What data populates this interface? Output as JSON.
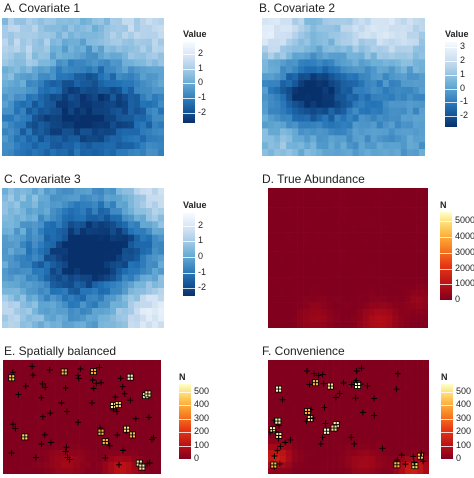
{
  "panels": [
    {
      "id": "cov1",
      "title": "A. Covariate 1",
      "legend_title": "Value",
      "palette": "blue",
      "range": [
        -2.7,
        2.8
      ],
      "ticks": [
        2,
        1,
        0,
        -1,
        -2
      ],
      "chart_data": {
        "type": "heatmap",
        "title": "A. Covariate 1",
        "legend": "Value",
        "value_range": [
          -2.7,
          2.8
        ]
      }
    },
    {
      "id": "cov2",
      "title": "B. Covariate 2",
      "legend_title": "Value",
      "palette": "blue",
      "range": [
        -2.8,
        3.4
      ],
      "ticks": [
        3,
        2,
        1,
        0,
        -1,
        -2
      ],
      "chart_data": {
        "type": "heatmap",
        "title": "B. Covariate 2",
        "legend": "Value",
        "value_range": [
          -2.8,
          3.4
        ]
      }
    },
    {
      "id": "cov3",
      "title": "C. Covariate 3",
      "legend_title": "Value",
      "palette": "blue",
      "range": [
        -2.5,
        2.8
      ],
      "ticks": [
        2,
        1,
        0,
        -1,
        -2
      ],
      "chart_data": {
        "type": "heatmap",
        "title": "C. Covariate 3",
        "legend": "Value",
        "value_range": [
          -2.5,
          2.8
        ]
      }
    },
    {
      "id": "abund",
      "title": "D. True Abundance",
      "legend_title": "N",
      "palette": "heat",
      "range": [
        0,
        5600
      ],
      "ticks": [
        5000,
        4000,
        3000,
        2000,
        1000,
        0
      ],
      "chart_data": {
        "type": "heatmap",
        "title": "D. True Abundance",
        "legend": "N",
        "value_range": [
          0,
          5600
        ]
      }
    },
    {
      "id": "spatial",
      "title": "E. Spatially balanced",
      "legend_title": "N",
      "palette": "heat",
      "range": [
        0,
        560
      ],
      "ticks": [
        500,
        400,
        300,
        200,
        100,
        0
      ],
      "chart_data": {
        "type": "heatmap",
        "title": "E. Spatially balanced",
        "legend": "N",
        "value_range": [
          0,
          560
        ],
        "sample_sites": 70
      }
    },
    {
      "id": "conv",
      "title": "F. Convenience",
      "legend_title": "N",
      "palette": "heat",
      "range": [
        0,
        560
      ],
      "ticks": [
        500,
        400,
        300,
        200,
        100,
        0
      ],
      "chart_data": {
        "type": "heatmap",
        "title": "F. Convenience",
        "legend": "N",
        "value_range": [
          0,
          560
        ],
        "sample_sites": 70
      }
    }
  ]
}
